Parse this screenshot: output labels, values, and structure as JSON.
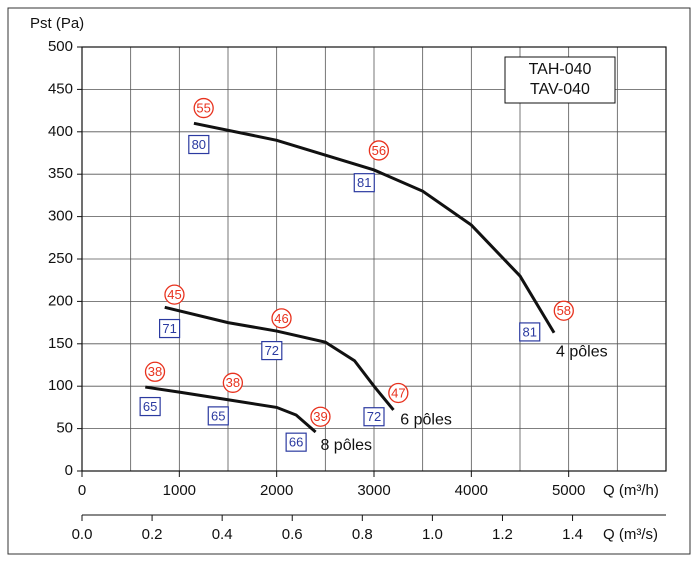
{
  "chart_data": {
    "type": "line",
    "ylabel": "Pst (Pa)",
    "xlabel": "Q (m³/h)",
    "x2label": "Q (m³/s)",
    "legend_lines": [
      "TAH-040",
      "TAV-040"
    ],
    "xlim": [
      0,
      6000
    ],
    "xticks": [
      0,
      1000,
      2000,
      3000,
      4000,
      5000
    ],
    "xgrid": [
      500,
      1000,
      1500,
      2000,
      2500,
      3000,
      3500,
      4000,
      4500,
      5000,
      5500
    ],
    "x2lim": [
      0,
      1.6667
    ],
    "x2ticks": [
      {
        "value": 0,
        "label": "0.0"
      },
      0.2,
      0.4,
      0.6,
      0.8,
      {
        "value": 1,
        "label": "1.0"
      },
      1.2,
      1.4
    ],
    "ylim": [
      0,
      500
    ],
    "yticks": [
      0,
      50,
      100,
      150,
      200,
      250,
      300,
      350,
      400,
      450,
      500
    ],
    "grid": true,
    "series": [
      {
        "name": "4 pôles",
        "color": "#111111",
        "x": [
          1150,
          2000,
          3000,
          3500,
          4000,
          4500,
          4850
        ],
        "values": [
          410,
          390,
          355,
          330,
          290,
          230,
          163
        ],
        "label_at": [
          4870,
          140
        ]
      },
      {
        "name": "6 pôles",
        "color": "#111111",
        "x": [
          850,
          1500,
          2000,
          2500,
          2800,
          3000,
          3200
        ],
        "values": [
          193,
          175,
          165,
          152,
          130,
          100,
          72
        ],
        "label_at": [
          3270,
          60
        ]
      },
      {
        "name": "8 pôles",
        "color": "#111111",
        "x": [
          650,
          1000,
          1500,
          2000,
          2200,
          2400
        ],
        "values": [
          99,
          93,
          84,
          75,
          66,
          46
        ],
        "label_at": [
          2450,
          30
        ]
      }
    ],
    "circled": [
      {
        "text": "55",
        "x": 1250,
        "y": 428
      },
      {
        "text": "56",
        "x": 3050,
        "y": 378
      },
      {
        "text": "58",
        "x": 4950,
        "y": 189
      },
      {
        "text": "45",
        "x": 950,
        "y": 208
      },
      {
        "text": "46",
        "x": 2050,
        "y": 180
      },
      {
        "text": "47",
        "x": 3250,
        "y": 92
      },
      {
        "text": "38",
        "x": 750,
        "y": 117
      },
      {
        "text": "38",
        "x": 1550,
        "y": 104
      },
      {
        "text": "39",
        "x": 2450,
        "y": 64
      }
    ],
    "boxed": [
      {
        "text": "80",
        "x": 1200,
        "y": 385
      },
      {
        "text": "81",
        "x": 2900,
        "y": 340
      },
      {
        "text": "81",
        "x": 4600,
        "y": 164
      },
      {
        "text": "71",
        "x": 900,
        "y": 168
      },
      {
        "text": "72",
        "x": 1950,
        "y": 142
      },
      {
        "text": "72",
        "x": 3000,
        "y": 64
      },
      {
        "text": "65",
        "x": 700,
        "y": 76
      },
      {
        "text": "65",
        "x": 1400,
        "y": 65
      },
      {
        "text": "66",
        "x": 2200,
        "y": 34
      }
    ]
  }
}
